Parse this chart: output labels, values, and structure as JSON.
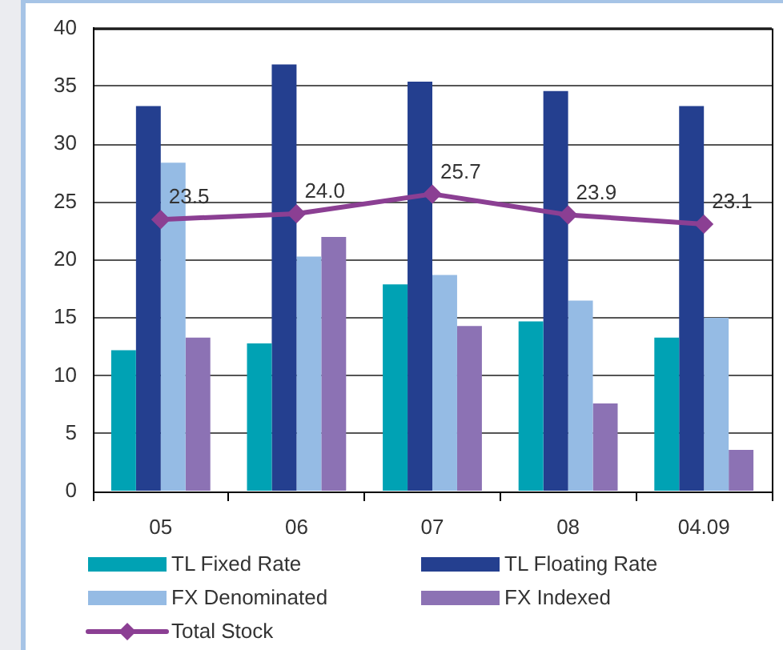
{
  "chart_data": {
    "type": "bar",
    "categories": [
      "05",
      "06",
      "07",
      "08",
      "04.09"
    ],
    "series": [
      {
        "name": "TL Fixed Rate",
        "color": "#00a2b4",
        "values": [
          12.2,
          12.8,
          17.9,
          14.7,
          13.3
        ]
      },
      {
        "name": "TL Floating Rate",
        "color": "#243f8f",
        "values": [
          33.3,
          36.9,
          35.4,
          34.6,
          33.3
        ]
      },
      {
        "name": "FX Denominated",
        "color": "#95bbe4",
        "values": [
          28.4,
          20.3,
          18.7,
          16.5,
          15.0
        ]
      },
      {
        "name": "FX Indexed",
        "color": "#8c72b4",
        "values": [
          13.3,
          22.0,
          14.3,
          7.6,
          3.6
        ]
      },
      {
        "name": "Total Stock",
        "type": "line",
        "color": "#8b3f93",
        "values": [
          23.5,
          24.0,
          25.7,
          23.9,
          23.1
        ],
        "value_labels": [
          "23.5",
          "24.0",
          "25.7",
          "23.9",
          "23.1"
        ]
      }
    ],
    "ylim": [
      0,
      40
    ],
    "yticks": [
      0,
      5,
      10,
      15,
      20,
      25,
      30,
      35,
      40
    ],
    "grid": "y",
    "legend": "bottom",
    "marker": "diamond"
  }
}
